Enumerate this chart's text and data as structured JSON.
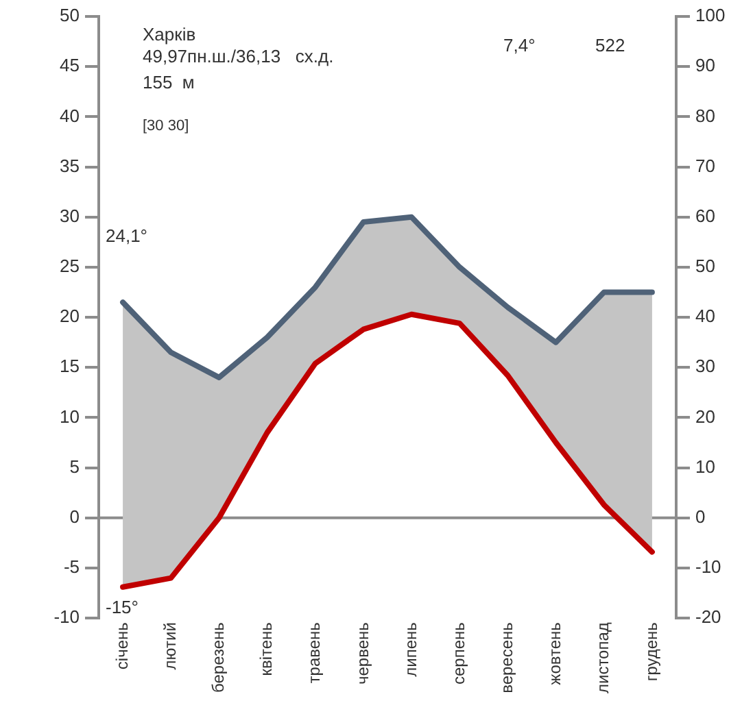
{
  "chart_data": {
    "type": "line",
    "title": "Харків",
    "annotations": [
      "49,97пн.ш./36,13   сх.д.",
      "155  м",
      "[30 30]",
      "7,4°",
      "522",
      "24,1°",
      "-15°"
    ],
    "categories": [
      "січень",
      "лютий",
      "березень",
      "квітень",
      "травень",
      "червень",
      "липень",
      "серпень",
      "вересень",
      "жовтень",
      "листопад",
      "грудень"
    ],
    "series": [
      {
        "axis": "y2",
        "color": "#4f6278",
        "values": [
          43,
          33,
          28,
          36,
          46,
          59,
          60,
          50,
          42,
          35,
          45,
          45
        ],
        "upper": [
          43,
          33,
          28,
          36,
          46,
          59,
          60,
          50,
          42,
          35,
          45,
          45
        ],
        "lower": [
          -13.8,
          -12,
          0,
          17,
          30.8,
          37.6,
          40.6,
          38.8,
          28.4,
          15,
          2.6,
          -6.8
        ]
      },
      {
        "color": "#c00000",
        "values": [
          -6.9,
          -6.0,
          0.0,
          8.5,
          15.4,
          18.8,
          20.3,
          19.4,
          14.2,
          7.5,
          1.3,
          -3.4
        ]
      }
    ],
    "ylim": [
      -10,
      50
    ],
    "yticks": [
      -10,
      -5,
      0,
      5,
      10,
      15,
      20,
      25,
      30,
      35,
      40,
      45,
      50
    ],
    "y2lim": [
      -20,
      100
    ],
    "y2ticks": [
      -20,
      -10,
      0,
      10,
      20,
      30,
      40,
      50,
      60,
      70,
      80,
      90,
      100
    ],
    "ref_lines": [
      {
        "axis": "y",
        "value": 0,
        "color": "#8c8c8c"
      }
    ],
    "grid": false,
    "legend": false,
    "marker": "none",
    "line_style": "solid"
  }
}
